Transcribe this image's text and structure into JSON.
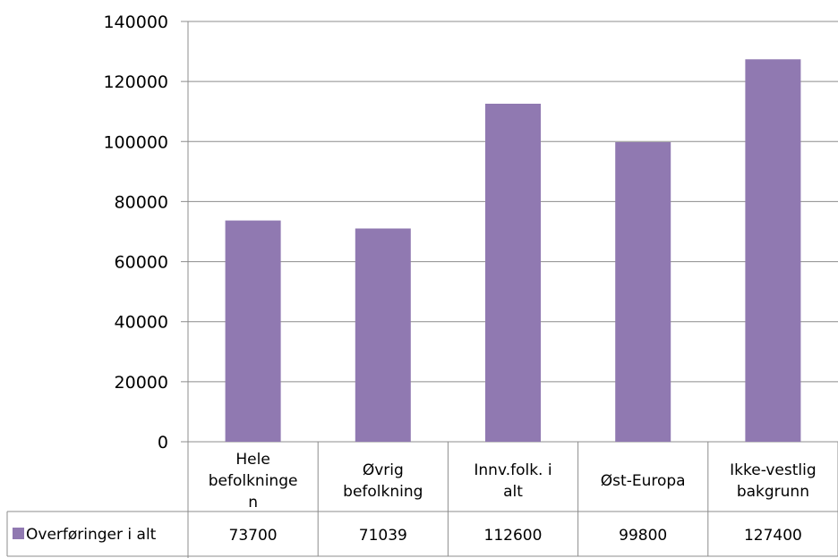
{
  "chart_data": {
    "type": "bar",
    "categories": [
      [
        "Hele",
        "befolkninge",
        "n"
      ],
      [
        "Øvrig",
        "befolkning"
      ],
      [
        "Innv.folk. i",
        "alt"
      ],
      [
        "Øst-Europa"
      ],
      [
        "Ikke-vestlig",
        "bakgrunn"
      ]
    ],
    "series": [
      {
        "name": "Overføringer i alt",
        "values": [
          73700,
          71039,
          112600,
          99800,
          127400
        ],
        "color": "#9079b1"
      }
    ],
    "value_labels": [
      "73700",
      "71039",
      "112600",
      "99800",
      "127400"
    ],
    "ylim": [
      0,
      140000
    ],
    "yticks": [
      0,
      20000,
      40000,
      60000,
      80000,
      100000,
      120000,
      140000
    ],
    "grid": true,
    "data_table": true,
    "legend": "in data table"
  }
}
